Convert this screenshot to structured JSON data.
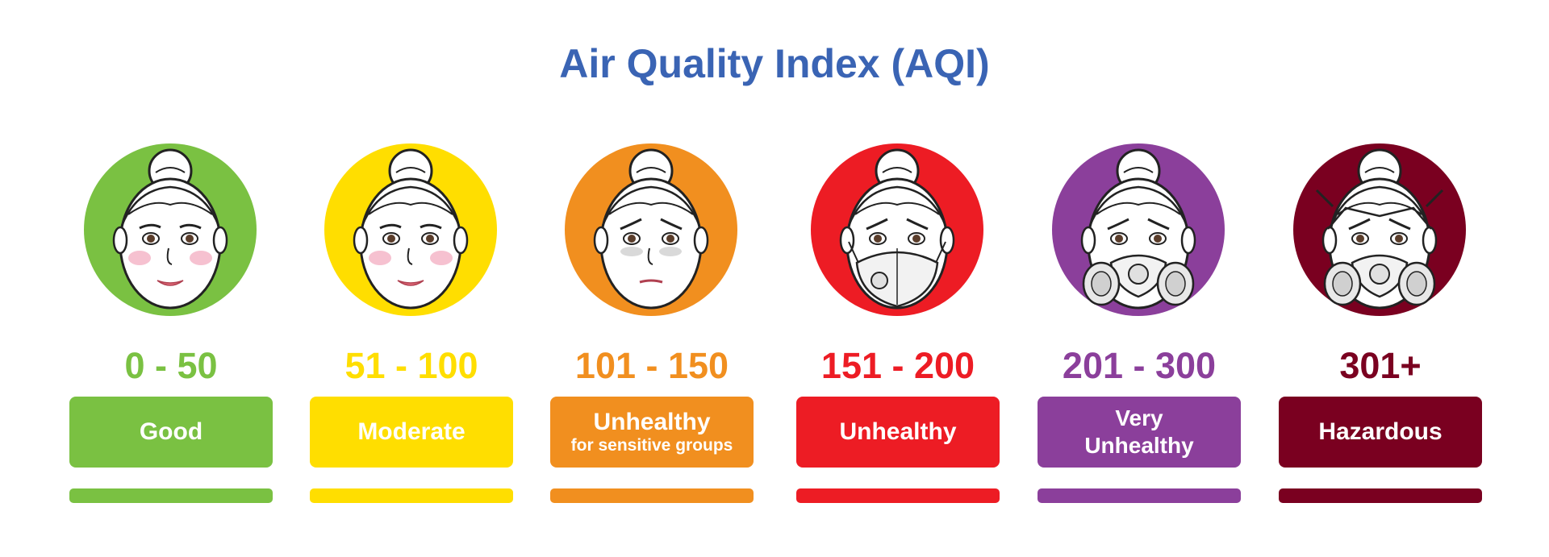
{
  "title": "Air Quality Index (AQI)",
  "levels": [
    {
      "range": "0 - 50",
      "label": "Good",
      "sublabel": "",
      "color": "#7ac142",
      "expression": "happy",
      "mask": "none"
    },
    {
      "range": "51 - 100",
      "label": "Moderate",
      "sublabel": "",
      "color": "#ffde00",
      "expression": "happy",
      "mask": "none"
    },
    {
      "range": "101 - 150",
      "label": "Unhealthy",
      "sublabel": "for sensitive groups",
      "color": "#f18f1f",
      "expression": "worried",
      "mask": "none"
    },
    {
      "range": "151 - 200",
      "label": "Unhealthy",
      "sublabel": "",
      "color": "#ed1c24",
      "expression": "sad",
      "mask": "dust-mask"
    },
    {
      "range": "201 - 300",
      "label": "Very Unhealthy",
      "sublabel": "",
      "color": "#8b3f9b",
      "expression": "sad",
      "mask": "gas-mask"
    },
    {
      "range": "301+",
      "label": "Hazardous",
      "sublabel": "",
      "color": "#7a0020",
      "expression": "sad",
      "mask": "full-respirator"
    }
  ]
}
